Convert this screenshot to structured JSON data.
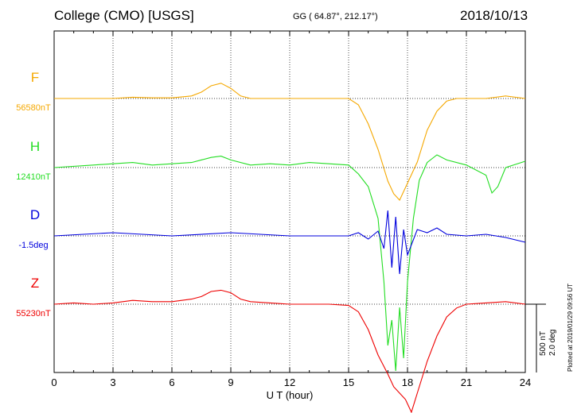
{
  "header": {
    "station": "College (CMO)  [USGS]",
    "coords": "GG ( 64.87°, 212.17°)",
    "date": "2018/10/13"
  },
  "plotted_note": "Plotted at 2019/01/29 09:56 UT",
  "scale": {
    "nt": "500 nT",
    "deg": "2.0 deg"
  },
  "chart_data": {
    "type": "line",
    "xlabel": "U T (hour)",
    "xlim": [
      0,
      24
    ],
    "xticks": [
      "0",
      "3",
      "6",
      "9",
      "12",
      "15",
      "18",
      "21",
      "24"
    ],
    "grid": true,
    "series": [
      {
        "name": "F",
        "baseline_label": "56580nT",
        "color": "#f5a800",
        "units": "nT",
        "x": [
          0,
          1,
          2,
          3,
          4,
          5,
          6,
          7,
          7.5,
          8,
          8.5,
          9,
          9.5,
          10,
          11,
          12,
          13,
          14,
          15,
          15.5,
          16,
          16.5,
          17,
          17.3,
          17.6,
          17.9,
          18.2,
          18.5,
          19,
          19.5,
          20,
          20.5,
          21,
          22,
          23,
          24
        ],
        "y": [
          0,
          0,
          0,
          0,
          10,
          5,
          5,
          20,
          50,
          100,
          120,
          80,
          20,
          0,
          0,
          0,
          0,
          0,
          0,
          -50,
          -200,
          -400,
          -650,
          -750,
          -800,
          -700,
          -600,
          -500,
          -250,
          -100,
          -20,
          0,
          0,
          0,
          20,
          0
        ]
      },
      {
        "name": "H",
        "baseline_label": "12410nT",
        "color": "#22dd22",
        "units": "nT",
        "x": [
          0,
          2,
          3,
          4,
          5,
          6,
          7,
          8,
          8.5,
          9,
          10,
          11,
          12,
          13,
          14,
          15,
          15.5,
          16,
          16.5,
          16.8,
          17,
          17.2,
          17.4,
          17.6,
          17.8,
          18,
          18.3,
          18.6,
          19,
          19.5,
          20,
          21,
          22,
          22.3,
          22.6,
          23,
          24
        ],
        "y": [
          0,
          20,
          30,
          40,
          20,
          30,
          40,
          80,
          90,
          60,
          20,
          30,
          20,
          40,
          30,
          20,
          -50,
          -150,
          -400,
          -900,
          -1400,
          -1200,
          -1600,
          -1100,
          -1500,
          -900,
          -400,
          -100,
          40,
          100,
          60,
          20,
          -60,
          -200,
          -150,
          0,
          50
        ]
      },
      {
        "name": "D",
        "baseline_label": "-1.5deg",
        "color": "#0000dd",
        "units": "deg",
        "x": [
          0,
          3,
          6,
          9,
          12,
          15,
          15.5,
          16,
          16.5,
          16.8,
          17,
          17.2,
          17.4,
          17.6,
          17.8,
          18,
          18.5,
          19,
          19.5,
          20,
          21,
          22,
          23,
          24
        ],
        "y": [
          0,
          0.1,
          0,
          0.1,
          0,
          0,
          0.1,
          -0.1,
          0.15,
          -0.4,
          0.8,
          -1.0,
          0.6,
          -1.2,
          0.2,
          -0.6,
          0.2,
          0.1,
          0.25,
          0.05,
          0,
          0.05,
          -0.05,
          -0.2
        ]
      },
      {
        "name": "Z",
        "baseline_label": "55230nT",
        "color": "#ee0000",
        "units": "nT",
        "x": [
          0,
          1,
          2,
          3,
          4,
          5,
          6,
          7,
          7.5,
          8,
          8.5,
          9,
          9.5,
          10,
          11,
          12,
          13,
          14,
          15,
          15.5,
          16,
          16.5,
          17,
          17.3,
          17.6,
          17.9,
          18.2,
          18.5,
          19,
          19.5,
          20,
          20.5,
          21,
          22,
          23,
          24
        ],
        "y": [
          0,
          10,
          0,
          10,
          30,
          20,
          20,
          40,
          60,
          100,
          110,
          90,
          40,
          20,
          10,
          0,
          0,
          0,
          -10,
          -60,
          -200,
          -400,
          -550,
          -650,
          -700,
          -750,
          -850,
          -700,
          -450,
          -250,
          -100,
          -30,
          0,
          10,
          20,
          0
        ]
      }
    ]
  }
}
